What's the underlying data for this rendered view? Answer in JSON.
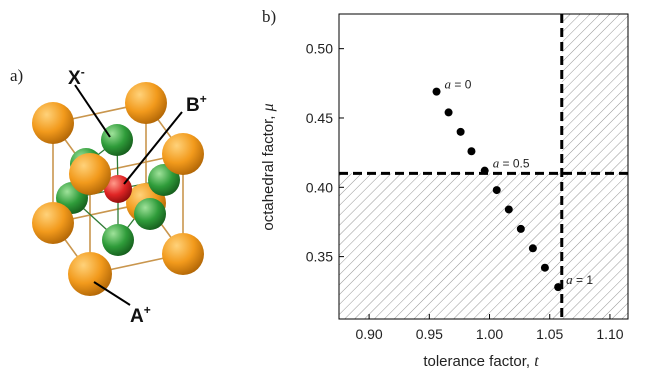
{
  "panel_a": {
    "label": "a)",
    "species": [
      {
        "ion": "X",
        "charge": "-"
      },
      {
        "ion": "B",
        "charge": "+"
      },
      {
        "ion": "A",
        "charge": "+"
      }
    ],
    "colors": {
      "A": "#f29a1c",
      "B": "#e02525",
      "X": "#2f9c3a",
      "bond": "#c9964e"
    }
  },
  "panel_b": {
    "label": "b)"
  },
  "chart_data": {
    "type": "scatter",
    "xlabel": "tolerance factor, ",
    "xlabel_symbol": "t",
    "ylabel": "octahedral factor, ",
    "ylabel_symbol": "μ",
    "xlim": [
      0.875,
      1.115
    ],
    "ylim": [
      0.305,
      0.525
    ],
    "xticks": [
      0.9,
      0.95,
      1.0,
      1.05,
      1.1
    ],
    "xtick_labels": [
      "0.90",
      "0.95",
      "1.00",
      "1.05",
      "1.10"
    ],
    "yticks": [
      0.35,
      0.4,
      0.45,
      0.5
    ],
    "ytick_labels": [
      "0.35",
      "0.40",
      "0.45",
      "0.50"
    ],
    "grid": false,
    "series": [
      {
        "x": [
          0.956,
          0.966,
          0.976,
          0.985,
          0.996,
          1.006,
          1.016,
          1.026,
          1.036,
          1.046,
          1.057
        ],
        "y": [
          0.469,
          0.454,
          0.44,
          0.426,
          0.412,
          0.398,
          0.384,
          0.37,
          0.356,
          0.342,
          0.328
        ],
        "color": "#000000"
      }
    ],
    "thresholds": {
      "t": 1.06,
      "mu": 0.41
    },
    "hatched_regions": [
      {
        "t_range": [
          0.875,
          1.06
        ],
        "mu_range": [
          0.305,
          0.41
        ]
      },
      {
        "t_range": [
          1.06,
          1.115
        ],
        "mu_range": [
          0.305,
          0.525
        ]
      }
    ],
    "annotations": [
      {
        "var": "a",
        "rest": " = 0",
        "x": 0.956,
        "y": 0.469
      },
      {
        "var": "a",
        "rest": " = 0.5",
        "x": 0.996,
        "y": 0.412
      },
      {
        "var": "a",
        "rest": " = 1",
        "x": 1.057,
        "y": 0.328
      }
    ]
  }
}
